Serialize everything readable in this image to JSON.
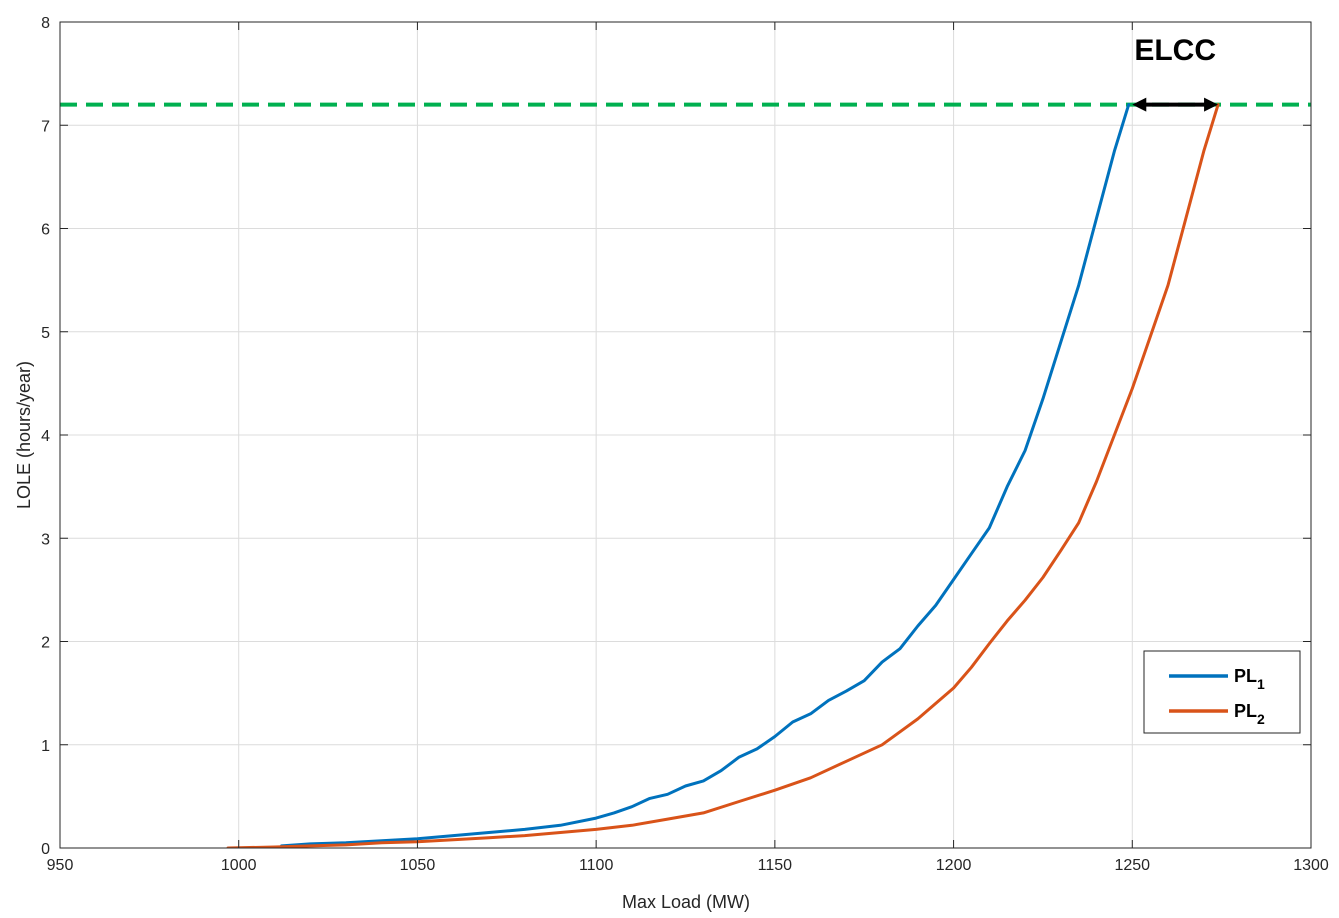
{
  "chart_data": {
    "type": "line",
    "title": "",
    "xlabel": "Max Load (MW)",
    "ylabel": "LOLE (hours/year)",
    "xlim": [
      950,
      1300
    ],
    "ylim": [
      0,
      8
    ],
    "x_ticks": [
      950,
      1000,
      1050,
      1100,
      1150,
      1200,
      1250,
      1300
    ],
    "y_ticks": [
      0,
      1,
      2,
      3,
      4,
      5,
      6,
      7,
      8
    ],
    "grid": true,
    "legend_position": "lower-right",
    "series": [
      {
        "name": "PL",
        "subscript": "1",
        "color": "#0072BD",
        "x": [
          1012,
          1020,
          1030,
          1040,
          1050,
          1060,
          1070,
          1080,
          1090,
          1100,
          1105,
          1110,
          1115,
          1120,
          1125,
          1130,
          1135,
          1140,
          1145,
          1150,
          1155,
          1160,
          1165,
          1170,
          1175,
          1180,
          1185,
          1190,
          1195,
          1200,
          1205,
          1210,
          1215,
          1220,
          1225,
          1230,
          1235,
          1240,
          1245,
          1249
        ],
        "values": [
          0.02,
          0.04,
          0.05,
          0.07,
          0.09,
          0.12,
          0.15,
          0.18,
          0.22,
          0.29,
          0.34,
          0.4,
          0.48,
          0.52,
          0.6,
          0.65,
          0.75,
          0.88,
          0.96,
          1.08,
          1.22,
          1.3,
          1.43,
          1.52,
          1.62,
          1.8,
          1.93,
          2.15,
          2.35,
          2.6,
          2.85,
          3.1,
          3.5,
          3.85,
          4.35,
          4.9,
          5.45,
          6.1,
          6.75,
          7.2
        ]
      },
      {
        "name": "PL",
        "subscript": "2",
        "color": "#D95319",
        "x": [
          997,
          1010,
          1020,
          1030,
          1040,
          1050,
          1060,
          1070,
          1080,
          1090,
          1100,
          1110,
          1120,
          1130,
          1140,
          1150,
          1160,
          1170,
          1180,
          1190,
          1200,
          1205,
          1210,
          1215,
          1220,
          1225,
          1230,
          1235,
          1240,
          1245,
          1250,
          1255,
          1260,
          1265,
          1270,
          1274
        ],
        "values": [
          0.0,
          0.01,
          0.02,
          0.03,
          0.05,
          0.06,
          0.08,
          0.1,
          0.12,
          0.15,
          0.18,
          0.22,
          0.28,
          0.34,
          0.45,
          0.56,
          0.68,
          0.84,
          1.0,
          1.25,
          1.55,
          1.75,
          1.98,
          2.2,
          2.4,
          2.62,
          2.88,
          3.15,
          3.55,
          4.0,
          4.45,
          4.95,
          5.45,
          6.1,
          6.75,
          7.2
        ]
      }
    ],
    "threshold": {
      "y": 7.2,
      "color": "#00B050"
    },
    "annotation": {
      "text": "ELCC",
      "x_start": 1250,
      "x_end": 1274,
      "y": 7.2
    }
  }
}
